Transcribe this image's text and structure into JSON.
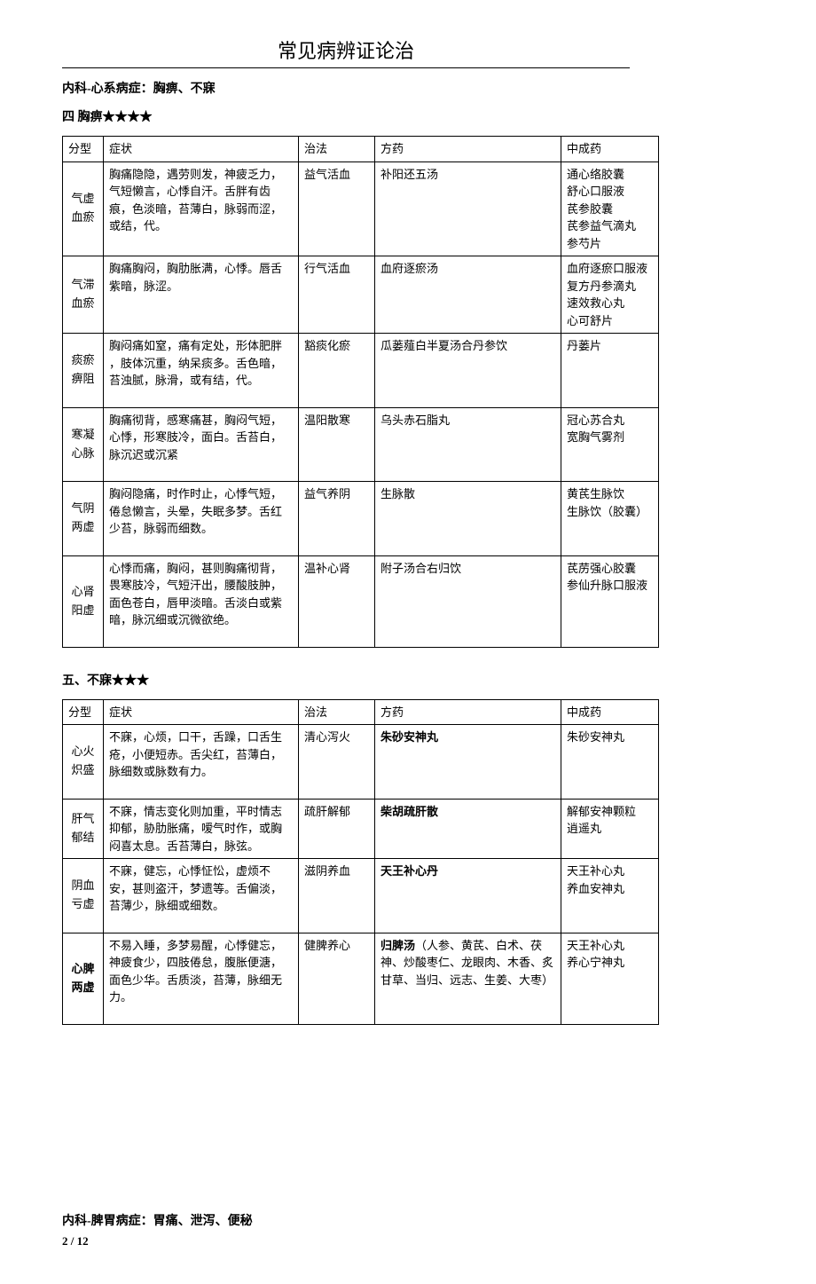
{
  "page_title": "常见病辨证论治",
  "section1_header": "内科-心系病症：胸痹、不寐",
  "table1_header": "四  胸痹★★★★",
  "columns": {
    "c1": "分型",
    "c2": "症状",
    "c3": "治法",
    "c4": "方药",
    "c5": "中成药"
  },
  "t1": {
    "r1": {
      "type": "气虚\n血瘀",
      "sym": "胸痛隐隐，遇劳则发，神疲乏力，气短懒言，心悸自汗。舌胖有齿痕，色淡暗，苔薄白，脉弱而涩，或结，代。",
      "treat": "益气活血",
      "formula": "补阳还五汤",
      "med": "通心络胶囊\n舒心口服液\n芪参胶囊\n芪参益气滴丸\n参芍片"
    },
    "r2": {
      "type": "气滞\n血瘀",
      "sym": "胸痛胸闷，胸肋胀满，心悸。唇舌紫暗，脉涩。",
      "treat": "行气活血",
      "formula": "血府逐瘀汤",
      "med": "血府逐瘀口服液\n复方丹参滴丸\n速效救心丸\n心可舒片"
    },
    "r3": {
      "type": "痰瘀\n痹阻",
      "sym": "胸闷痛如窒，痛有定处，形体肥胖 ，肢体沉重，纳呆痰多。舌色暗，苔浊腻，脉滑，或有结，代。",
      "treat": "豁痰化瘀",
      "formula": "瓜蒌薤白半夏汤合丹参饮",
      "med": "丹蒌片"
    },
    "r4": {
      "type": "寒凝\n心脉",
      "sym": "胸痛彻背，感寒痛甚，胸闷气短，心悸，形寒肢冷，面白。舌苔白，脉沉迟或沉紧",
      "treat": "温阳散寒",
      "formula": "乌头赤石脂丸",
      "med": "冠心苏合丸\n宽胸气雾剂"
    },
    "r5": {
      "type": "气阴\n两虚",
      "sym": "胸闷隐痛，时作时止，心悸气短，倦怠懒言，头晕，失眠多梦。舌红少苔，脉弱而细数。",
      "treat": "益气养阴",
      "formula": "生脉散",
      "med": "黄芪生脉饮\n生脉饮（胶囊）"
    },
    "r6": {
      "type": "心肾\n阳虚",
      "sym": "心悸而痛，胸闷，甚则胸痛彻背，畏寒肢冷，气短汗出，腰酸肢肿，面色苍白，唇甲淡暗。舌淡白或紫暗，脉沉细或沉微欲绝。",
      "treat": "温补心肾",
      "formula": "附子汤合右归饮",
      "med": "芪苈强心胶囊\n参仙升脉口服液"
    }
  },
  "table2_header": "五、不寐★★★",
  "t2": {
    "r1": {
      "type": "心火\n炽盛",
      "sym": "不寐，心烦，口干，舌躁，口舌生疮，小便短赤。舌尖红，苔薄白，脉细数或脉数有力。",
      "treat": "清心泻火",
      "formula_bold": "朱砂安神丸",
      "formula_rest": "",
      "med": "朱砂安神丸"
    },
    "r2": {
      "type": "肝气\n郁结",
      "sym": "不寐，情志变化则加重，平时情志抑郁，胁肋胀痛，嗳气时作，或胸闷喜太息。舌苔薄白，脉弦。",
      "treat": "疏肝解郁",
      "formula_bold": "柴胡疏肝散",
      "formula_rest": "",
      "med": "解郁安神颗粒\n逍遥丸"
    },
    "r3": {
      "type": "阴血\n亏虚",
      "sym": "不寐，健忘，心悸怔忪，虚烦不安，甚则盗汗，梦遗等。舌偏淡，苔薄少，脉细或细数。",
      "treat": "滋阴养血",
      "formula_bold": "天王补心丹",
      "formula_rest": "",
      "med": "天王补心丸\n养血安神丸"
    },
    "r4": {
      "type": "心脾\n两虚",
      "sym": "不易入睡，多梦易醒，心悸健忘，神疲食少，四肢倦怠，腹胀便溏，面色少华。舌质淡，苔薄，脉细无力。",
      "treat": "健脾养心",
      "formula_bold": "归脾汤",
      "formula_rest": "（人参、黄芪、白术、茯神、炒酸枣仁、龙眼肉、木香、炙甘草、当归、远志、生姜、大枣）",
      "med": "天王补心丸\n养心宁神丸"
    }
  },
  "bottom_header": "内科-脾胃病症：胃痛、泄泻、便秘",
  "footer": "2 / 12"
}
